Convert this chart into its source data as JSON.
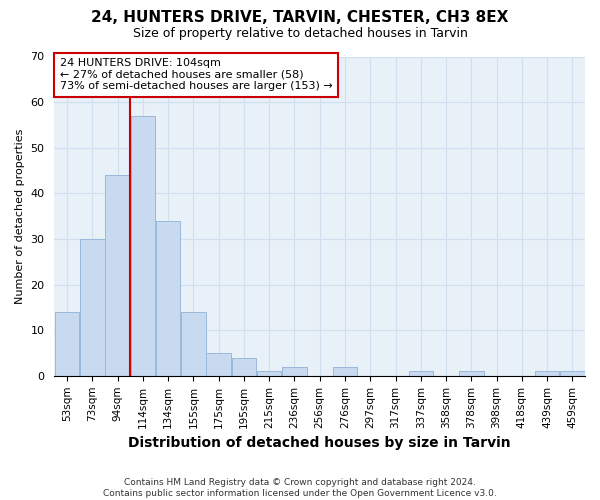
{
  "title": "24, HUNTERS DRIVE, TARVIN, CHESTER, CH3 8EX",
  "subtitle": "Size of property relative to detached houses in Tarvin",
  "xlabel": "Distribution of detached houses by size in Tarvin",
  "ylabel": "Number of detached properties",
  "bin_labels": [
    "53sqm",
    "73sqm",
    "94sqm",
    "114sqm",
    "134sqm",
    "155sqm",
    "175sqm",
    "195sqm",
    "215sqm",
    "236sqm",
    "256sqm",
    "276sqm",
    "297sqm",
    "317sqm",
    "337sqm",
    "358sqm",
    "378sqm",
    "398sqm",
    "418sqm",
    "439sqm",
    "459sqm"
  ],
  "bar_heights": [
    14,
    30,
    44,
    57,
    34,
    14,
    5,
    4,
    1,
    2,
    0,
    2,
    0,
    0,
    1,
    0,
    1,
    0,
    0,
    1,
    1
  ],
  "bar_color": "#c8daf0",
  "bar_edge_color": "#9ab8d8",
  "grid_color": "#d0dff0",
  "bg_color": "#e8f0f8",
  "vline_color": "#cc0000",
  "vline_x_index": 3,
  "annotation_line1": "24 HUNTERS DRIVE: 104sqm",
  "annotation_line2": "← 27% of detached houses are smaller (58)",
  "annotation_line3": "73% of semi-detached houses are larger (153) →",
  "box_facecolor": "white",
  "box_edgecolor": "#cc0000",
  "ylim": [
    0,
    70
  ],
  "yticks": [
    0,
    10,
    20,
    30,
    40,
    50,
    60,
    70
  ],
  "footer": "Contains HM Land Registry data © Crown copyright and database right 2024.\nContains public sector information licensed under the Open Government Licence v3.0.",
  "title_fontsize": 11,
  "subtitle_fontsize": 9,
  "xlabel_fontsize": 10,
  "ylabel_fontsize": 8
}
